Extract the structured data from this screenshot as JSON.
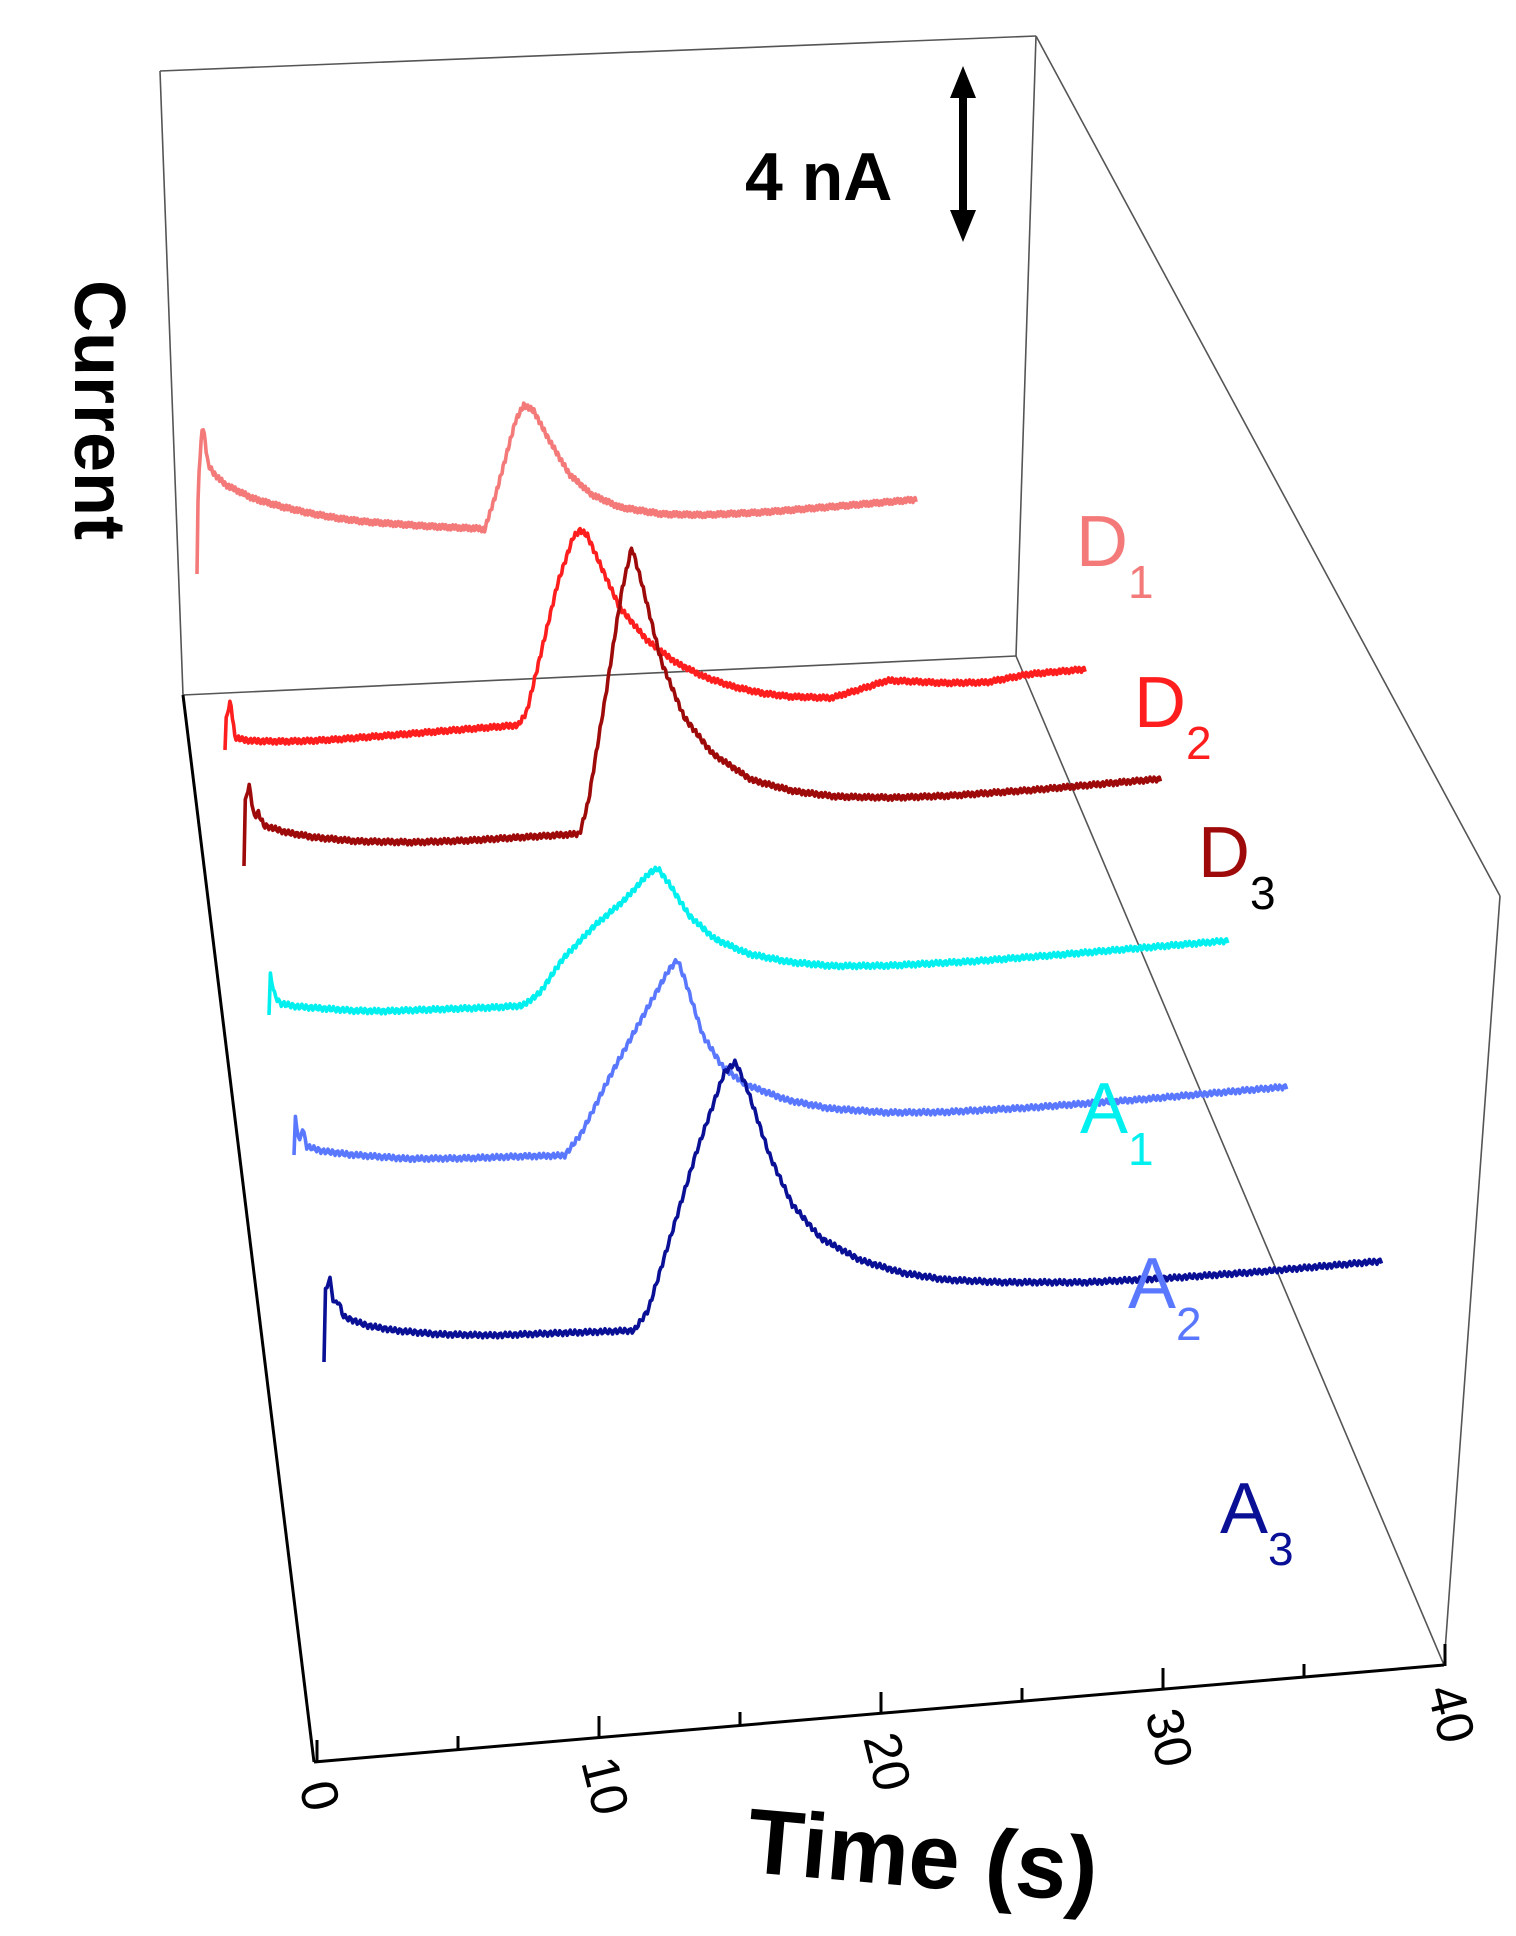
{
  "chart_data": {
    "type": "line",
    "subtype": "3d-waterfall",
    "xlabel": "Time (s)",
    "ylabel": "Current",
    "xlim": [
      0,
      40
    ],
    "xticks": [
      "0",
      "10",
      "20",
      "30",
      "40"
    ],
    "scale_bar": {
      "label": "4 nA",
      "value_nA": 4
    },
    "grid": false,
    "series": [
      {
        "name": "D",
        "sub": "1",
        "color": "#f47a7a",
        "x_end": 25.5,
        "points": [
          [
            0,
            -0.4
          ],
          [
            0.05,
            2.8
          ],
          [
            0.2,
            4.6
          ],
          [
            0.4,
            3.2
          ],
          [
            0.6,
            2.9
          ],
          [
            1,
            2.5
          ],
          [
            2,
            1.95
          ],
          [
            3,
            1.6
          ],
          [
            4,
            1.3
          ],
          [
            5,
            1.05
          ],
          [
            6,
            0.85
          ],
          [
            7,
            0.7
          ],
          [
            8,
            0.55
          ],
          [
            9,
            0.42
          ],
          [
            10,
            0.3
          ],
          [
            10.2,
            0.25
          ],
          [
            10.6,
            1.4
          ],
          [
            11.3,
            3.8
          ],
          [
            11.6,
            4.3
          ],
          [
            11.95,
            4.05
          ],
          [
            12.4,
            3.2
          ],
          [
            13.2,
            1.85
          ],
          [
            14,
            1.1
          ],
          [
            15,
            0.6
          ],
          [
            16.5,
            0.25
          ],
          [
            18,
            0.1
          ],
          [
            20,
            0.02
          ],
          [
            23,
            0
          ],
          [
            25.5,
            0
          ]
        ]
      },
      {
        "name": "D",
        "sub": "2",
        "color": "#ff1e1e",
        "x_end": 30.5,
        "points": [
          [
            0,
            0
          ],
          [
            0.05,
            1.15
          ],
          [
            0.2,
            1.6
          ],
          [
            0.35,
            0.4
          ],
          [
            0.6,
            0.3
          ],
          [
            1,
            0.22
          ],
          [
            2,
            0.12
          ],
          [
            3,
            0.06
          ],
          [
            4,
            0.03
          ],
          [
            6,
            0.01
          ],
          [
            8,
            0
          ],
          [
            10.4,
            -0.02
          ],
          [
            10.7,
            0.4
          ],
          [
            11.2,
            2.3
          ],
          [
            11.8,
            4.6
          ],
          [
            12.35,
            6.1
          ],
          [
            12.6,
            6.3
          ],
          [
            12.85,
            6.1
          ],
          [
            13.3,
            5.1
          ],
          [
            14,
            3.6
          ],
          [
            15,
            2.4
          ],
          [
            16,
            1.6
          ],
          [
            17,
            1.05
          ],
          [
            18,
            0.65
          ],
          [
            19,
            0.35
          ],
          [
            20,
            0.15
          ],
          [
            21.5,
            -0.02
          ],
          [
            22.5,
            0.18
          ],
          [
            23.5,
            0.4
          ],
          [
            24.5,
            0.28
          ],
          [
            25.5,
            0.15
          ],
          [
            27,
            0.05
          ],
          [
            28.5,
            0.2
          ],
          [
            30.5,
            0.2
          ]
        ]
      },
      {
        "name": "D",
        "sub": "3",
        "color": "#9e0a0a",
        "x_end": 32.5,
        "points": [
          [
            0,
            0
          ],
          [
            0.05,
            2.3
          ],
          [
            0.2,
            2.65
          ],
          [
            0.35,
            1.6
          ],
          [
            0.5,
            1.75
          ],
          [
            0.7,
            1.3
          ],
          [
            1.5,
            1.0
          ],
          [
            2.5,
            0.75
          ],
          [
            4,
            0.5
          ],
          [
            6,
            0.3
          ],
          [
            8,
            0.2
          ],
          [
            10,
            0.15
          ],
          [
            11.9,
            0.1
          ],
          [
            12.2,
            1.1
          ],
          [
            12.8,
            4.5
          ],
          [
            13.4,
            8.1
          ],
          [
            13.75,
            9.5
          ],
          [
            14.1,
            8.3
          ],
          [
            14.8,
            5.6
          ],
          [
            15.6,
            3.7
          ],
          [
            16.6,
            2.4
          ],
          [
            18,
            1.4
          ],
          [
            19.5,
            0.9
          ],
          [
            21,
            0.6
          ],
          [
            23,
            0.4
          ],
          [
            25,
            0.3
          ],
          [
            28,
            0.25
          ],
          [
            32.5,
            0.25
          ]
        ]
      },
      {
        "name": "A",
        "sub": "1",
        "color": "#00f0f0",
        "x_end": 34.0,
        "points": [
          [
            0,
            0.5
          ],
          [
            0.05,
            1.85
          ],
          [
            0.2,
            1.15
          ],
          [
            0.4,
            0.85
          ],
          [
            1,
            0.7
          ],
          [
            2,
            0.55
          ],
          [
            3,
            0.4
          ],
          [
            4,
            0.3
          ],
          [
            6,
            0.2
          ],
          [
            8,
            0.1
          ],
          [
            9,
            0.08
          ],
          [
            9.6,
            0.45
          ],
          [
            10.4,
            1.5
          ],
          [
            11.5,
            2.5
          ],
          [
            12.6,
            3.3
          ],
          [
            13.5,
            4.15
          ],
          [
            13.8,
            4.25
          ],
          [
            14.2,
            3.7
          ],
          [
            14.9,
            2.6
          ],
          [
            15.8,
            1.75
          ],
          [
            17,
            1.15
          ],
          [
            18.5,
            0.75
          ],
          [
            20,
            0.5
          ],
          [
            22,
            0.35
          ],
          [
            25,
            0.25
          ],
          [
            28,
            0.22
          ],
          [
            34,
            0.2
          ]
        ]
      },
      {
        "name": "A",
        "sub": "2",
        "color": "#5a78ff",
        "x_end": 35.2,
        "points": [
          [
            0,
            1.0
          ],
          [
            0.05,
            2.2
          ],
          [
            0.2,
            1.4
          ],
          [
            0.3,
            1.9
          ],
          [
            0.45,
            1.25
          ],
          [
            1,
            1.05
          ],
          [
            2,
            0.85
          ],
          [
            3,
            0.7
          ],
          [
            4,
            0.55
          ],
          [
            6,
            0.4
          ],
          [
            8,
            0.3
          ],
          [
            9.6,
            0.2
          ],
          [
            10.2,
            0.9
          ],
          [
            11.2,
            2.7
          ],
          [
            12.3,
            4.5
          ],
          [
            13.3,
            6.1
          ],
          [
            13.6,
            6.4
          ],
          [
            13.9,
            5.6
          ],
          [
            14.5,
            3.8
          ],
          [
            15.2,
            2.7
          ],
          [
            16,
            2.05
          ],
          [
            17.5,
            1.4
          ],
          [
            19,
            1.0
          ],
          [
            21,
            0.7
          ],
          [
            23,
            0.55
          ],
          [
            26,
            0.45
          ],
          [
            30,
            0.4
          ],
          [
            35.2,
            0.4
          ]
        ]
      },
      {
        "name": "A",
        "sub": "3",
        "color": "#0a1096",
        "x_end": 37.5,
        "points": [
          [
            0,
            0
          ],
          [
            0.05,
            2.35
          ],
          [
            0.2,
            2.8
          ],
          [
            0.35,
            1.9
          ],
          [
            0.5,
            2.0
          ],
          [
            0.7,
            1.45
          ],
          [
            1.5,
            1.1
          ],
          [
            2.5,
            0.85
          ],
          [
            4,
            0.6
          ],
          [
            6,
            0.4
          ],
          [
            8,
            0.3
          ],
          [
            10,
            0.2
          ],
          [
            11,
            0.15
          ],
          [
            11.5,
            0.8
          ],
          [
            12.3,
            3.2
          ],
          [
            13.2,
            5.9
          ],
          [
            14.2,
            8.5
          ],
          [
            14.6,
            8.8
          ],
          [
            15,
            7.9
          ],
          [
            15.8,
            5.6
          ],
          [
            16.6,
            3.9
          ],
          [
            17.6,
            2.7
          ],
          [
            19,
            1.85
          ],
          [
            20.5,
            1.3
          ],
          [
            22,
            0.95
          ],
          [
            24,
            0.7
          ],
          [
            27,
            0.45
          ],
          [
            30,
            0.35
          ],
          [
            33,
            0.3
          ],
          [
            37.5,
            0.3
          ]
        ]
      }
    ]
  }
}
